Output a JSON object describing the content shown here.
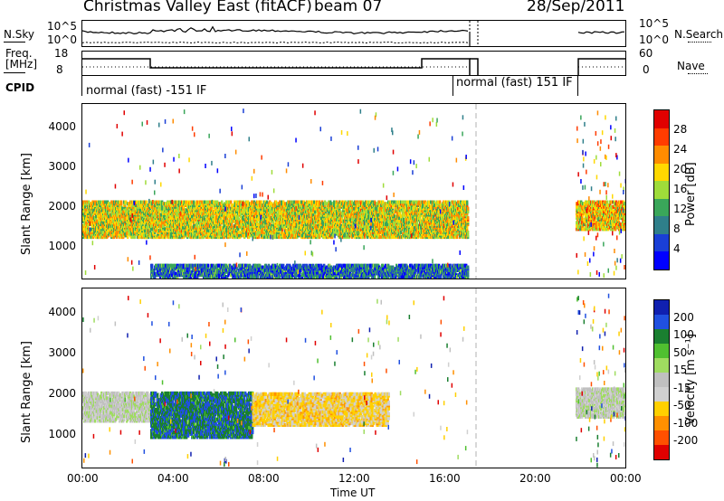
{
  "header": {
    "title": "Christmas Valley East (fitACF)",
    "beam": "beam 07",
    "date": "28/Sep/2011"
  },
  "left_labels": {
    "nsky": "N.Sky",
    "freq_line1": "Freq.",
    "freq_line2": "[MHz]",
    "cpid": "CPID"
  },
  "right_labels": {
    "nsearch": "N.Search",
    "nave": "Nave"
  },
  "noise_axis": {
    "top": "10^5",
    "bottom": "10^0",
    "right_top": "10^5",
    "right_bottom": "10^0"
  },
  "freq_axis": {
    "left_top": "18",
    "left_bottom": "8",
    "right_top": "60",
    "right_bottom": "0"
  },
  "cpid_text": {
    "first": "normal (fast) -151 IF",
    "second": "normal (fast) 151 IF"
  },
  "colors": {
    "power_scale": [
      "#0000ff",
      "#1a3fd6",
      "#2f7f8a",
      "#3aa65a",
      "#9fdc3a",
      "#ffd800",
      "#ff8c00",
      "#ff3c00",
      "#e00000"
    ],
    "velocity_scale": [
      "#1020b0",
      "#2050e0",
      "#1a7f30",
      "#50c030",
      "#9fdc60",
      "#c0c0c0",
      "#d0d0d0",
      "#ffd000",
      "#ff9000",
      "#ff5000",
      "#e00000"
    ]
  },
  "chart_data": [
    {
      "type": "heatmap",
      "title": "",
      "ylabel": "Slant Range [km]",
      "xlabel": "",
      "yticks": [
        "1000",
        "2000",
        "3000",
        "4000"
      ],
      "ylim": [
        200,
        4600
      ],
      "xlim_hours": [
        0,
        24
      ],
      "colorbar_label": "Power [dB]",
      "colorbar_ticks": [
        "4",
        "8",
        "12",
        "16",
        "20",
        "24",
        "28"
      ],
      "colorbar_range": [
        0,
        32
      ],
      "data_gaps_hours": [
        [
          17.0,
          21.8
        ]
      ],
      "dashed_marker_hours": 17.4,
      "features": [
        {
          "name": "main band",
          "t_start": 0.0,
          "t_end": 17.0,
          "range_low": 1200,
          "range_high": 2100,
          "typical_dB": 18
        },
        {
          "name": "late band",
          "t_start": 21.8,
          "t_end": 24.0,
          "range_low": 1400,
          "range_high": 2100,
          "typical_dB": 20
        },
        {
          "name": "near-range ground",
          "t_start": 3.0,
          "t_end": 17.0,
          "range_low": 200,
          "range_high": 500,
          "typical_dB": 8
        }
      ]
    },
    {
      "type": "heatmap",
      "title": "",
      "ylabel": "Slant Range [km]",
      "xlabel": "Time UT",
      "yticks": [
        "1000",
        "2000",
        "3000",
        "4000"
      ],
      "xticks": [
        "00:00",
        "04:00",
        "08:00",
        "12:00",
        "16:00",
        "20:00",
        "00:00"
      ],
      "ylim": [
        200,
        4600
      ],
      "xlim_hours": [
        0,
        24
      ],
      "colorbar_label": "Velocity [m s⁻¹]",
      "colorbar_ticks": [
        "200",
        "100",
        "50",
        "15",
        "-15",
        "-50",
        "-100",
        "-200"
      ],
      "colorbar_range": [
        -250,
        250
      ],
      "data_gaps_hours": [
        [
          17.0,
          21.8
        ]
      ],
      "dashed_marker_hours": 17.4,
      "features": [
        {
          "name": "ground scatter band",
          "t_start": 0.0,
          "t_end": 3.0,
          "range_low": 1300,
          "range_high": 2000,
          "typical_ms": 0
        },
        {
          "name": "approaching flow",
          "t_start": 3.0,
          "t_end": 7.5,
          "range_low": 900,
          "range_high": 2000,
          "typical_ms": 150
        },
        {
          "name": "receding flow",
          "t_start": 7.5,
          "t_end": 13.5,
          "range_low": 1200,
          "range_high": 2000,
          "typical_ms": -80
        },
        {
          "name": "late ground scatter",
          "t_start": 21.8,
          "t_end": 24.0,
          "range_low": 1400,
          "range_high": 2100,
          "typical_ms": 0
        }
      ]
    }
  ]
}
